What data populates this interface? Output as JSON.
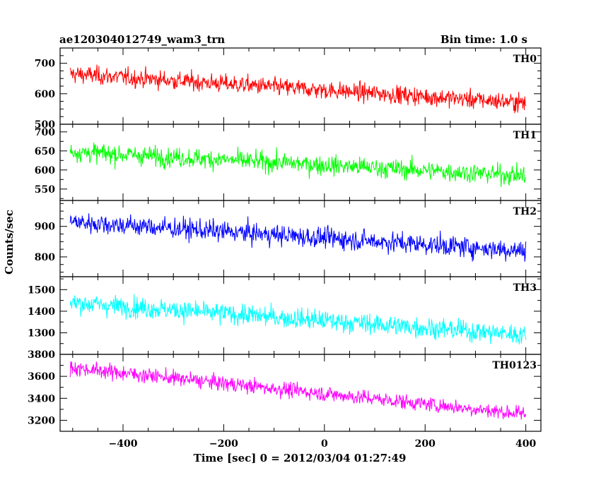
{
  "header": {
    "left_title": "ae120304012749_wam3_trn",
    "right_title": "Bin time: 1.0 s"
  },
  "chart_data": {
    "type": "line",
    "xlabel": "Time [sec] 0 = 2012/03/04 01:27:49",
    "ylabel": "Counts/sec",
    "xlim": [
      -525,
      430
    ],
    "x_ticks": [
      -400,
      -200,
      0,
      200,
      400
    ],
    "x_range": [
      -505,
      400
    ],
    "bin_time_s": 1.0,
    "panels": [
      {
        "name": "TH0",
        "color": "#ff0000",
        "ylim": [
          500,
          750
        ],
        "y_ticks": [
          500,
          600,
          700
        ],
        "trend": {
          "start": 665,
          "end": 570
        },
        "noise": 28
      },
      {
        "name": "TH1",
        "color": "#00ff00",
        "ylim": [
          520,
          720
        ],
        "y_ticks": [
          550,
          600,
          650,
          700
        ],
        "trend": {
          "start": 648,
          "end": 585
        },
        "noise": 24
      },
      {
        "name": "TH2",
        "color": "#0000ff",
        "ylim": [
          735,
          985
        ],
        "y_ticks": [
          800,
          900
        ],
        "trend": {
          "start": 915,
          "end": 820
        },
        "noise": 32
      },
      {
        "name": "TH3",
        "color": "#00ffff",
        "ylim": [
          1200,
          1560
        ],
        "y_ticks": [
          1300,
          1400,
          1500
        ],
        "trend": {
          "start": 1440,
          "end": 1290
        },
        "noise": 45
      },
      {
        "name": "TH0123",
        "color": "#ff00ff",
        "ylim": [
          3100,
          3800
        ],
        "y_ticks": [
          3200,
          3400,
          3600,
          3800
        ],
        "trend": {
          "start": 3680,
          "end": 3255
        },
        "noise": 65
      }
    ]
  }
}
